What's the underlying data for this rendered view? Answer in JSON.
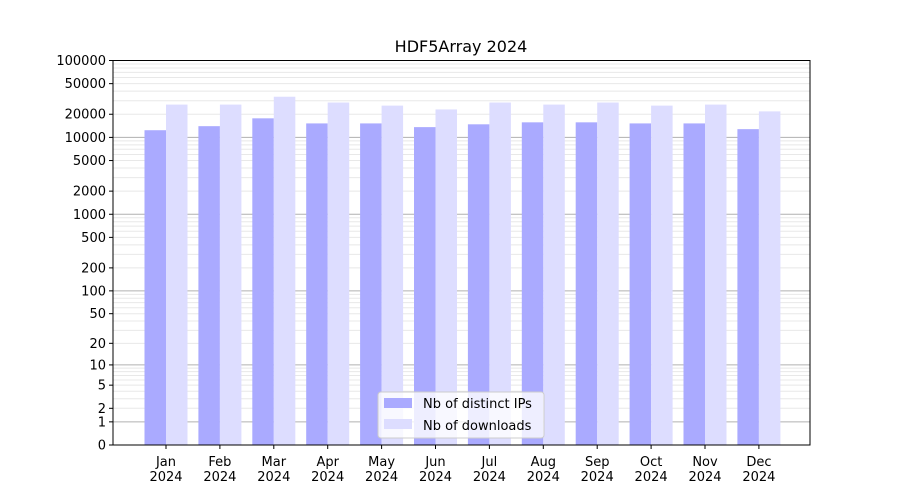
{
  "chart_data": {
    "type": "bar",
    "title": "HDF5Array 2024",
    "xlabel": "",
    "ylabel": "",
    "yscale": "log(1+y)",
    "ylim": [
      0,
      100000
    ],
    "yticks": [
      0,
      1,
      2,
      5,
      10,
      20,
      50,
      100,
      200,
      500,
      1000,
      2000,
      5000,
      10000,
      20000,
      50000,
      100000
    ],
    "grid": true,
    "legend": "bottom-center",
    "categories": [
      "Jan\n2024",
      "Feb\n2024",
      "Mar\n2024",
      "Apr\n2024",
      "May\n2024",
      "Jun\n2024",
      "Jul\n2024",
      "Aug\n2024",
      "Sep\n2024",
      "Oct\n2024",
      "Nov\n2024",
      "Dec\n2024"
    ],
    "series": [
      {
        "name": "Nb of distinct IPs",
        "color": "#aaaaff",
        "values": [
          12400,
          14000,
          17700,
          15200,
          15200,
          13600,
          14800,
          15700,
          15700,
          15200,
          15200,
          12800
        ]
      },
      {
        "name": "Nb of downloads",
        "color": "#ddddff",
        "values": [
          26700,
          26700,
          33800,
          28400,
          25900,
          23100,
          28400,
          26700,
          28400,
          25900,
          26700,
          21800
        ]
      }
    ]
  }
}
